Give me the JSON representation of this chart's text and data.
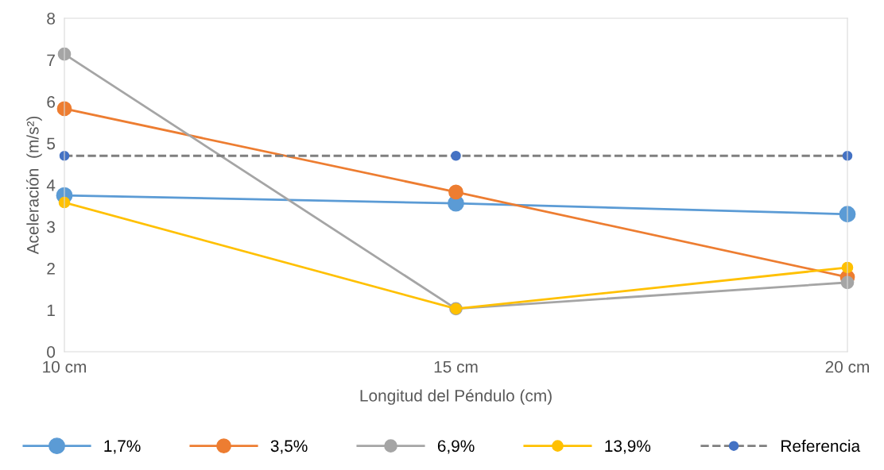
{
  "chart_data": {
    "type": "line",
    "xlabel": "Longitud del Péndulo (cm)",
    "ylabel": "Aceleración  (m/s²)",
    "categories": [
      "10 cm",
      "15 cm",
      "20 cm"
    ],
    "series": [
      {
        "name": "1,7%",
        "color": "#5b9bd5",
        "values": [
          3.75,
          3.56,
          3.3
        ]
      },
      {
        "name": "3,5%",
        "color": "#ed7d31",
        "values": [
          5.83,
          3.83,
          1.79
        ]
      },
      {
        "name": "6,9%",
        "color": "#a5a5a5",
        "values": [
          7.14,
          1.03,
          1.66
        ]
      },
      {
        "name": "13,9%",
        "color": "#ffc000",
        "values": [
          3.58,
          1.03,
          2.02
        ]
      },
      {
        "name": "Referencia",
        "color": "#4472c4",
        "values": [
          4.7,
          4.7,
          4.7
        ],
        "line_style": "dashed"
      }
    ],
    "ylim": [
      0,
      8
    ],
    "yticks": [
      0,
      1,
      2,
      3,
      4,
      5,
      6,
      7,
      8
    ],
    "marker": "circle",
    "line_style": "solid",
    "legend": "bottom",
    "grid": false
  }
}
